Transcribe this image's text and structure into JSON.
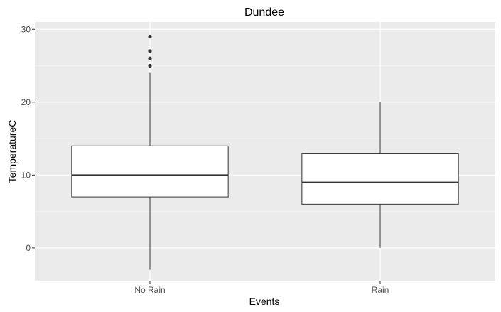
{
  "chart_data": {
    "type": "boxplot",
    "title": "Dundee",
    "xlabel": "Events",
    "ylabel": "TemperatureC",
    "categories": [
      "No Rain",
      "Rain"
    ],
    "y_ticks": [
      0,
      10,
      20,
      30
    ],
    "ylim": [
      -4.5,
      31
    ],
    "grid": true,
    "legend": "none",
    "boxes": [
      {
        "category": "No Rain",
        "whisker_low": -3,
        "q1": 7,
        "median": 10,
        "q3": 14,
        "whisker_high": 24,
        "outliers": [
          25,
          26,
          27,
          29
        ]
      },
      {
        "category": "Rain",
        "whisker_low": 0,
        "q1": 6,
        "median": 9,
        "q3": 13,
        "whisker_high": 20,
        "outliers": []
      }
    ],
    "colors": {
      "panel_background": "#ebebeb",
      "grid_major": "#ffffff",
      "grid_minor": "#f5f5f5",
      "box_fill": "#ffffff",
      "box_line": "#333333",
      "tick_text": "#4d4d4d"
    }
  }
}
